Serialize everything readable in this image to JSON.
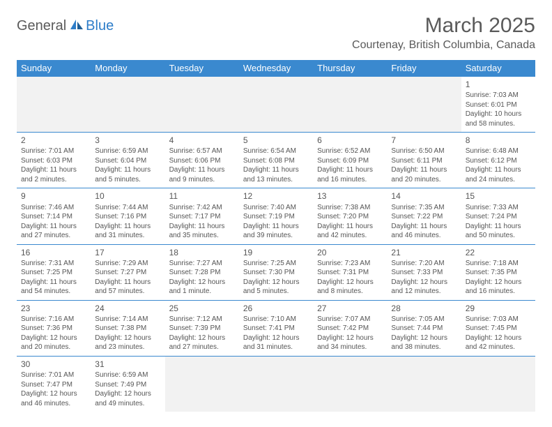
{
  "logo": {
    "text1": "General",
    "text2": "Blue",
    "icon_color": "#2d7dc9"
  },
  "header": {
    "month_title": "March 2025",
    "location": "Courtenay, British Columbia, Canada"
  },
  "calendar": {
    "header_bg": "#3a89cf",
    "header_fg": "#ffffff",
    "border_color": "#3a89cf",
    "blank_bg": "#f2f2f2",
    "day_names": [
      "Sunday",
      "Monday",
      "Tuesday",
      "Wednesday",
      "Thursday",
      "Friday",
      "Saturday"
    ],
    "weeks": [
      [
        null,
        null,
        null,
        null,
        null,
        null,
        {
          "n": "1",
          "sr": "Sunrise: 7:03 AM",
          "ss": "Sunset: 6:01 PM",
          "dl1": "Daylight: 10 hours",
          "dl2": "and 58 minutes."
        }
      ],
      [
        {
          "n": "2",
          "sr": "Sunrise: 7:01 AM",
          "ss": "Sunset: 6:03 PM",
          "dl1": "Daylight: 11 hours",
          "dl2": "and 2 minutes."
        },
        {
          "n": "3",
          "sr": "Sunrise: 6:59 AM",
          "ss": "Sunset: 6:04 PM",
          "dl1": "Daylight: 11 hours",
          "dl2": "and 5 minutes."
        },
        {
          "n": "4",
          "sr": "Sunrise: 6:57 AM",
          "ss": "Sunset: 6:06 PM",
          "dl1": "Daylight: 11 hours",
          "dl2": "and 9 minutes."
        },
        {
          "n": "5",
          "sr": "Sunrise: 6:54 AM",
          "ss": "Sunset: 6:08 PM",
          "dl1": "Daylight: 11 hours",
          "dl2": "and 13 minutes."
        },
        {
          "n": "6",
          "sr": "Sunrise: 6:52 AM",
          "ss": "Sunset: 6:09 PM",
          "dl1": "Daylight: 11 hours",
          "dl2": "and 16 minutes."
        },
        {
          "n": "7",
          "sr": "Sunrise: 6:50 AM",
          "ss": "Sunset: 6:11 PM",
          "dl1": "Daylight: 11 hours",
          "dl2": "and 20 minutes."
        },
        {
          "n": "8",
          "sr": "Sunrise: 6:48 AM",
          "ss": "Sunset: 6:12 PM",
          "dl1": "Daylight: 11 hours",
          "dl2": "and 24 minutes."
        }
      ],
      [
        {
          "n": "9",
          "sr": "Sunrise: 7:46 AM",
          "ss": "Sunset: 7:14 PM",
          "dl1": "Daylight: 11 hours",
          "dl2": "and 27 minutes."
        },
        {
          "n": "10",
          "sr": "Sunrise: 7:44 AM",
          "ss": "Sunset: 7:16 PM",
          "dl1": "Daylight: 11 hours",
          "dl2": "and 31 minutes."
        },
        {
          "n": "11",
          "sr": "Sunrise: 7:42 AM",
          "ss": "Sunset: 7:17 PM",
          "dl1": "Daylight: 11 hours",
          "dl2": "and 35 minutes."
        },
        {
          "n": "12",
          "sr": "Sunrise: 7:40 AM",
          "ss": "Sunset: 7:19 PM",
          "dl1": "Daylight: 11 hours",
          "dl2": "and 39 minutes."
        },
        {
          "n": "13",
          "sr": "Sunrise: 7:38 AM",
          "ss": "Sunset: 7:20 PM",
          "dl1": "Daylight: 11 hours",
          "dl2": "and 42 minutes."
        },
        {
          "n": "14",
          "sr": "Sunrise: 7:35 AM",
          "ss": "Sunset: 7:22 PM",
          "dl1": "Daylight: 11 hours",
          "dl2": "and 46 minutes."
        },
        {
          "n": "15",
          "sr": "Sunrise: 7:33 AM",
          "ss": "Sunset: 7:24 PM",
          "dl1": "Daylight: 11 hours",
          "dl2": "and 50 minutes."
        }
      ],
      [
        {
          "n": "16",
          "sr": "Sunrise: 7:31 AM",
          "ss": "Sunset: 7:25 PM",
          "dl1": "Daylight: 11 hours",
          "dl2": "and 54 minutes."
        },
        {
          "n": "17",
          "sr": "Sunrise: 7:29 AM",
          "ss": "Sunset: 7:27 PM",
          "dl1": "Daylight: 11 hours",
          "dl2": "and 57 minutes."
        },
        {
          "n": "18",
          "sr": "Sunrise: 7:27 AM",
          "ss": "Sunset: 7:28 PM",
          "dl1": "Daylight: 12 hours",
          "dl2": "and 1 minute."
        },
        {
          "n": "19",
          "sr": "Sunrise: 7:25 AM",
          "ss": "Sunset: 7:30 PM",
          "dl1": "Daylight: 12 hours",
          "dl2": "and 5 minutes."
        },
        {
          "n": "20",
          "sr": "Sunrise: 7:23 AM",
          "ss": "Sunset: 7:31 PM",
          "dl1": "Daylight: 12 hours",
          "dl2": "and 8 minutes."
        },
        {
          "n": "21",
          "sr": "Sunrise: 7:20 AM",
          "ss": "Sunset: 7:33 PM",
          "dl1": "Daylight: 12 hours",
          "dl2": "and 12 minutes."
        },
        {
          "n": "22",
          "sr": "Sunrise: 7:18 AM",
          "ss": "Sunset: 7:35 PM",
          "dl1": "Daylight: 12 hours",
          "dl2": "and 16 minutes."
        }
      ],
      [
        {
          "n": "23",
          "sr": "Sunrise: 7:16 AM",
          "ss": "Sunset: 7:36 PM",
          "dl1": "Daylight: 12 hours",
          "dl2": "and 20 minutes."
        },
        {
          "n": "24",
          "sr": "Sunrise: 7:14 AM",
          "ss": "Sunset: 7:38 PM",
          "dl1": "Daylight: 12 hours",
          "dl2": "and 23 minutes."
        },
        {
          "n": "25",
          "sr": "Sunrise: 7:12 AM",
          "ss": "Sunset: 7:39 PM",
          "dl1": "Daylight: 12 hours",
          "dl2": "and 27 minutes."
        },
        {
          "n": "26",
          "sr": "Sunrise: 7:10 AM",
          "ss": "Sunset: 7:41 PM",
          "dl1": "Daylight: 12 hours",
          "dl2": "and 31 minutes."
        },
        {
          "n": "27",
          "sr": "Sunrise: 7:07 AM",
          "ss": "Sunset: 7:42 PM",
          "dl1": "Daylight: 12 hours",
          "dl2": "and 34 minutes."
        },
        {
          "n": "28",
          "sr": "Sunrise: 7:05 AM",
          "ss": "Sunset: 7:44 PM",
          "dl1": "Daylight: 12 hours",
          "dl2": "and 38 minutes."
        },
        {
          "n": "29",
          "sr": "Sunrise: 7:03 AM",
          "ss": "Sunset: 7:45 PM",
          "dl1": "Daylight: 12 hours",
          "dl2": "and 42 minutes."
        }
      ],
      [
        {
          "n": "30",
          "sr": "Sunrise: 7:01 AM",
          "ss": "Sunset: 7:47 PM",
          "dl1": "Daylight: 12 hours",
          "dl2": "and 46 minutes."
        },
        {
          "n": "31",
          "sr": "Sunrise: 6:59 AM",
          "ss": "Sunset: 7:49 PM",
          "dl1": "Daylight: 12 hours",
          "dl2": "and 49 minutes."
        },
        null,
        null,
        null,
        null,
        null
      ]
    ]
  }
}
